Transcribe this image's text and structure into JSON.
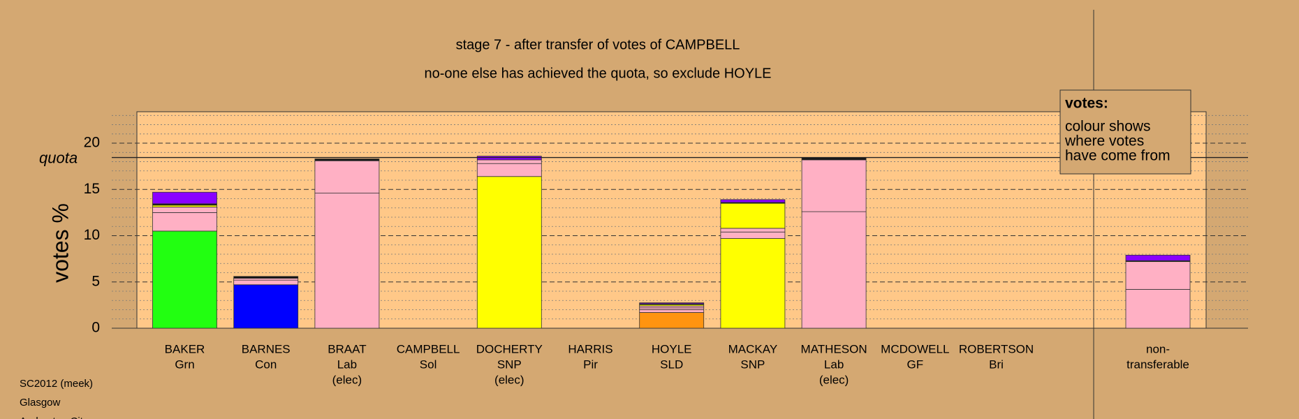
{
  "chart_data": {
    "type": "bar",
    "stacked": true,
    "title": "stage 7 - after transfer of votes of CAMPBELL",
    "subtitle": "no-one else has achieved the quota, so exclude HOYLE",
    "ylabel": "votes %",
    "categories": [
      [
        "BAKER",
        "Grn"
      ],
      [
        "BARNES",
        "Con"
      ],
      [
        "BRAAT",
        "Lab",
        "(elec)"
      ],
      [
        "CAMPBELL",
        "Sol"
      ],
      [
        "DOCHERTY",
        "SNP",
        "(elec)"
      ],
      [
        "HARRIS",
        "Pir"
      ],
      [
        "HOYLE",
        "SLD"
      ],
      [
        "MACKAY",
        "SNP"
      ],
      [
        "MATHESON",
        "Lab",
        "(elec)"
      ],
      [
        "MCDOWELL",
        "GF"
      ],
      [
        "ROBERTSON",
        "Bri"
      ],
      [
        "non-",
        "transferable"
      ]
    ],
    "series": [
      {
        "color": "#22ff11",
        "values": [
          10.5,
          0,
          0,
          0,
          0,
          0,
          0,
          0,
          0,
          0,
          0,
          0
        ]
      },
      {
        "color": "#0000ff",
        "values": [
          0,
          4.7,
          0,
          0,
          0,
          0,
          0,
          0,
          0,
          0,
          0,
          0
        ]
      },
      {
        "color": "#ffff00",
        "values": [
          0,
          0,
          0,
          0,
          16.4,
          0,
          0,
          9.7,
          0,
          0,
          0,
          0
        ]
      },
      {
        "color": "#ff9410",
        "values": [
          0,
          0,
          0,
          0,
          0,
          0,
          1.7,
          0,
          0,
          0,
          0,
          0
        ]
      },
      {
        "color": "#ffb0c4",
        "values": [
          2.0,
          0.5,
          14.6,
          0,
          0,
          0,
          0.3,
          0.7,
          12.6,
          0,
          0,
          4.2
        ]
      },
      {
        "color": "#ffb0c4",
        "values": [
          0.6,
          0.2,
          3.5,
          0,
          1.4,
          0,
          0.2,
          0.4,
          5.6,
          0,
          0,
          3.0
        ]
      },
      {
        "color": "#ffb0c4",
        "values": [
          0,
          0,
          0,
          0,
          0.4,
          0,
          0.2,
          0,
          0,
          0,
          0,
          0
        ]
      },
      {
        "color": "#ffff00",
        "values": [
          0.2,
          0,
          0,
          0,
          0,
          0,
          0.15,
          2.7,
          0,
          0,
          0,
          0
        ]
      },
      {
        "color": "#111111",
        "values": [
          0.15,
          0.2,
          0.2,
          0,
          0,
          0,
          0.1,
          0.1,
          0.2,
          0,
          0,
          0.1
        ]
      },
      {
        "color": "#8a00ff",
        "values": [
          1.25,
          0,
          0,
          0,
          0.4,
          0,
          0.1,
          0.3,
          0,
          0,
          0,
          0.6
        ]
      }
    ],
    "ylim": [
      0,
      23.4
    ],
    "yticks": [
      0,
      5,
      10,
      15,
      20
    ],
    "yminor": [
      1,
      2,
      3,
      4,
      6,
      7,
      8,
      9,
      11,
      12,
      13,
      14,
      16,
      17,
      18,
      19,
      21,
      22,
      23
    ],
    "quota": {
      "label": "quota",
      "value": 18.45
    },
    "legend": {
      "title": "votes:",
      "lines": [
        "colour shows",
        "where votes",
        "have come from"
      ]
    },
    "footer": [
      "SC2012 (meek)",
      "Glasgow",
      "Anderston City"
    ]
  }
}
